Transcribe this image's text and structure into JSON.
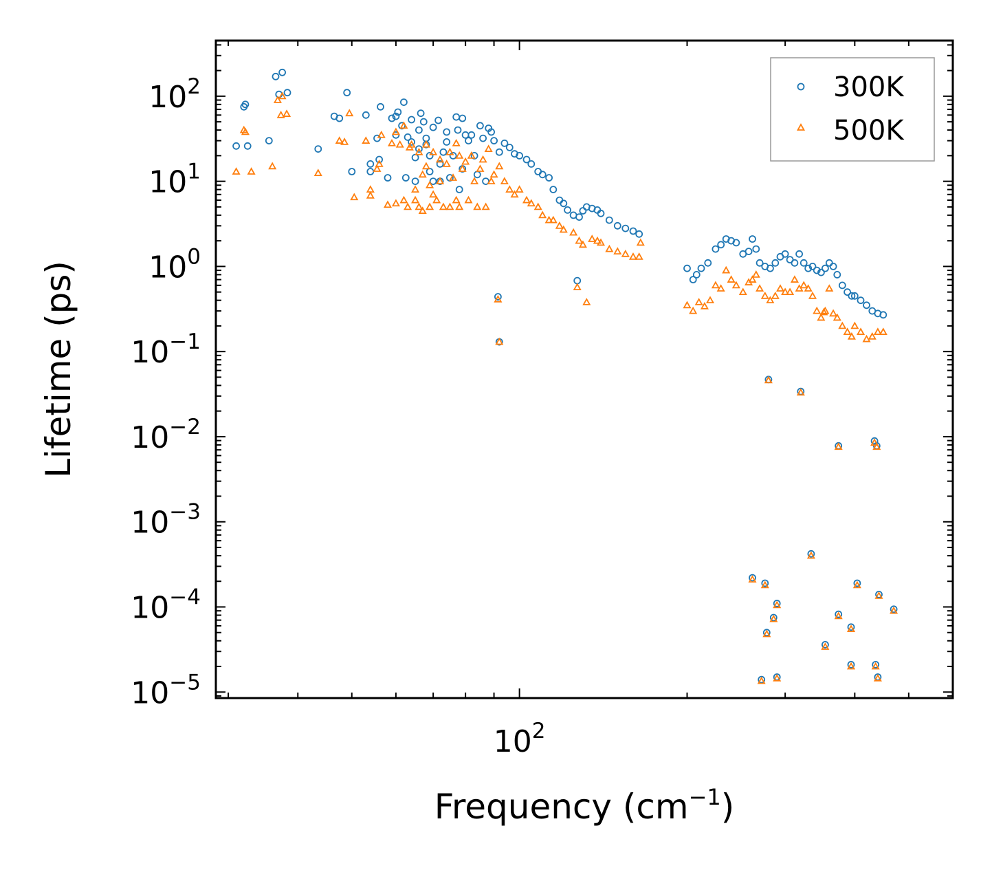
{
  "chart_data": {
    "type": "scatter",
    "title": "",
    "xlabel": "Frequency (cm",
    "xlabel_sup": "−1",
    "xlabel_close": ")",
    "ylabel": "Lifetime (ps)",
    "xscale": "log",
    "yscale": "log",
    "xlim": [
      28.5,
      600
    ],
    "ylim": [
      8.5e-06,
      450
    ],
    "x_major_ticks": [
      {
        "value": 100,
        "base": "10",
        "exp": "2"
      }
    ],
    "y_major_ticks": [
      {
        "value": 100,
        "base": "10",
        "exp": "2"
      },
      {
        "value": 10,
        "base": "10",
        "exp": "1"
      },
      {
        "value": 1,
        "base": "10",
        "exp": "0"
      },
      {
        "value": 0.1,
        "base": "10",
        "exp": "−1"
      },
      {
        "value": 0.01,
        "base": "10",
        "exp": "−2"
      },
      {
        "value": 0.001,
        "base": "10",
        "exp": "−3"
      },
      {
        "value": 0.0001,
        "base": "10",
        "exp": "−4"
      },
      {
        "value": 1e-05,
        "base": "10",
        "exp": "−5"
      }
    ],
    "legend_position": "top-right",
    "series": [
      {
        "name": "300K",
        "marker": "circle",
        "color": "#1f77b4",
        "points": [
          [
            31,
            26
          ],
          [
            32,
            75
          ],
          [
            32.2,
            80
          ],
          [
            32.5,
            26
          ],
          [
            35.5,
            30
          ],
          [
            36.5,
            170
          ],
          [
            37.5,
            190
          ],
          [
            38.3,
            110
          ],
          [
            37,
            105
          ],
          [
            43.5,
            24
          ],
          [
            46.5,
            58
          ],
          [
            47.5,
            55
          ],
          [
            49,
            110
          ],
          [
            50,
            13
          ],
          [
            53,
            60
          ],
          [
            54,
            13
          ],
          [
            54,
            16
          ],
          [
            55.5,
            32
          ],
          [
            56,
            18
          ],
          [
            56.3,
            75
          ],
          [
            58,
            11
          ],
          [
            59,
            55
          ],
          [
            60,
            58
          ],
          [
            60,
            35
          ],
          [
            60.5,
            65
          ],
          [
            61.5,
            45
          ],
          [
            62,
            85
          ],
          [
            62.5,
            11
          ],
          [
            63,
            33
          ],
          [
            64,
            29
          ],
          [
            64,
            53
          ],
          [
            65,
            19
          ],
          [
            65,
            10
          ],
          [
            66,
            40
          ],
          [
            66,
            24
          ],
          [
            66.5,
            63
          ],
          [
            67.3,
            50
          ],
          [
            68,
            32
          ],
          [
            68,
            27
          ],
          [
            69,
            20
          ],
          [
            69,
            13
          ],
          [
            70,
            43
          ],
          [
            70,
            10
          ],
          [
            71.5,
            52
          ],
          [
            72,
            16
          ],
          [
            72,
            10
          ],
          [
            73,
            22
          ],
          [
            74,
            29
          ],
          [
            74,
            38
          ],
          [
            75,
            11
          ],
          [
            76,
            20
          ],
          [
            77,
            57
          ],
          [
            77.5,
            40
          ],
          [
            78,
            8
          ],
          [
            79,
            55
          ],
          [
            79,
            14
          ],
          [
            80,
            35
          ],
          [
            81,
            30
          ],
          [
            82,
            35
          ],
          [
            83,
            20
          ],
          [
            84,
            12
          ],
          [
            85,
            45
          ],
          [
            86,
            32
          ],
          [
            87,
            10
          ],
          [
            88,
            42
          ],
          [
            89,
            38
          ],
          [
            90,
            30
          ],
          [
            92,
            22
          ],
          [
            94,
            28
          ],
          [
            96,
            25
          ],
          [
            98,
            21
          ],
          [
            100,
            20
          ],
          [
            103,
            18
          ],
          [
            105,
            16
          ],
          [
            108,
            13
          ],
          [
            110,
            12
          ],
          [
            113,
            11
          ],
          [
            115,
            8
          ],
          [
            118,
            6
          ],
          [
            120,
            5.5
          ],
          [
            122,
            4.6
          ],
          [
            125,
            4
          ],
          [
            128,
            3.8
          ],
          [
            130,
            4.5
          ],
          [
            132,
            5
          ],
          [
            135,
            4.8
          ],
          [
            138,
            4.6
          ],
          [
            140,
            4.2
          ],
          [
            145,
            3.5
          ],
          [
            150,
            3
          ],
          [
            155,
            2.8
          ],
          [
            160,
            2.6
          ],
          [
            164,
            2.4
          ],
          [
            91.5,
            0.44
          ],
          [
            92,
            0.13
          ],
          [
            127,
            0.68
          ],
          [
            200,
            0.95
          ],
          [
            205,
            0.7
          ],
          [
            208,
            0.8
          ],
          [
            212,
            0.95
          ],
          [
            218,
            1.1
          ],
          [
            225,
            1.6
          ],
          [
            230,
            1.8
          ],
          [
            235,
            2.1
          ],
          [
            240,
            2.0
          ],
          [
            245,
            1.9
          ],
          [
            252,
            1.4
          ],
          [
            258,
            1.5
          ],
          [
            262,
            2.1
          ],
          [
            266,
            1.6
          ],
          [
            270,
            1.1
          ],
          [
            276,
            1.0
          ],
          [
            282,
            0.95
          ],
          [
            288,
            1.1
          ],
          [
            294,
            1.3
          ],
          [
            300,
            1.4
          ],
          [
            306,
            1.2
          ],
          [
            312,
            1.1
          ],
          [
            318,
            1.4
          ],
          [
            324,
            1.1
          ],
          [
            330,
            0.95
          ],
          [
            336,
            1.0
          ],
          [
            342,
            0.9
          ],
          [
            348,
            0.85
          ],
          [
            354,
            0.95
          ],
          [
            360,
            1.1
          ],
          [
            366,
            1.0
          ],
          [
            372,
            0.8
          ],
          [
            380,
            0.6
          ],
          [
            388,
            0.5
          ],
          [
            395,
            0.45
          ],
          [
            400,
            0.45
          ],
          [
            410,
            0.4
          ],
          [
            420,
            0.35
          ],
          [
            430,
            0.3
          ],
          [
            440,
            0.28
          ],
          [
            450,
            0.27
          ],
          [
            280,
            0.047
          ],
          [
            320,
            0.034
          ],
          [
            374,
            0.0078
          ],
          [
            434,
            0.0089
          ],
          [
            438,
            0.0078
          ],
          [
            262,
            0.00022
          ],
          [
            276,
            0.00019
          ],
          [
            290,
            0.00011
          ],
          [
            286,
            7.5e-05
          ],
          [
            278,
            5e-05
          ],
          [
            272,
            1.4e-05
          ],
          [
            290,
            1.5e-05
          ],
          [
            334,
            0.00042
          ],
          [
            374,
            8.2e-05
          ],
          [
            354,
            3.6e-05
          ],
          [
            394,
            5.8e-05
          ],
          [
            404,
            0.00019
          ],
          [
            394,
            2.1e-05
          ],
          [
            442,
            0.00014
          ],
          [
            436,
            2.1e-05
          ],
          [
            440,
            1.5e-05
          ],
          [
            470,
            9.4e-05
          ]
        ]
      },
      {
        "name": "500K",
        "marker": "triangle",
        "color": "#ff7f0e",
        "points": [
          [
            31,
            13
          ],
          [
            32,
            40
          ],
          [
            32.2,
            38
          ],
          [
            33,
            13
          ],
          [
            36,
            15
          ],
          [
            36.8,
            90
          ],
          [
            37.5,
            100
          ],
          [
            38.2,
            62
          ],
          [
            37.3,
            60
          ],
          [
            43.5,
            12.5
          ],
          [
            47.5,
            30
          ],
          [
            48.5,
            29
          ],
          [
            49.5,
            63
          ],
          [
            50.5,
            6.5
          ],
          [
            53,
            30
          ],
          [
            54,
            6.8
          ],
          [
            54,
            8
          ],
          [
            55.5,
            14
          ],
          [
            56,
            16
          ],
          [
            56.5,
            35
          ],
          [
            58,
            5.3
          ],
          [
            59,
            28
          ],
          [
            60,
            38
          ],
          [
            60,
            5.5
          ],
          [
            61,
            27
          ],
          [
            62,
            6
          ],
          [
            62,
            45
          ],
          [
            63,
            5
          ],
          [
            63.5,
            25
          ],
          [
            64,
            27
          ],
          [
            65,
            8
          ],
          [
            65,
            6
          ],
          [
            66,
            5
          ],
          [
            66,
            22
          ],
          [
            67,
            12
          ],
          [
            67,
            4.5
          ],
          [
            68,
            15
          ],
          [
            68,
            27
          ],
          [
            69,
            9
          ],
          [
            69,
            5
          ],
          [
            70,
            22
          ],
          [
            70,
            7
          ],
          [
            71,
            6
          ],
          [
            72,
            18
          ],
          [
            72,
            10
          ],
          [
            73,
            5
          ],
          [
            74,
            16
          ],
          [
            75,
            22
          ],
          [
            75,
            5
          ],
          [
            76,
            11
          ],
          [
            77,
            28
          ],
          [
            77,
            6
          ],
          [
            78,
            20
          ],
          [
            78,
            5
          ],
          [
            79,
            14
          ],
          [
            80,
            17
          ],
          [
            81,
            6
          ],
          [
            82,
            20
          ],
          [
            83,
            10
          ],
          [
            84,
            5
          ],
          [
            85,
            14
          ],
          [
            86,
            18
          ],
          [
            87,
            5
          ],
          [
            88,
            24
          ],
          [
            89,
            10
          ],
          [
            90,
            12
          ],
          [
            92,
            15
          ],
          [
            94,
            10
          ],
          [
            96,
            8
          ],
          [
            98,
            7
          ],
          [
            100,
            8
          ],
          [
            103,
            6
          ],
          [
            105,
            5.5
          ],
          [
            108,
            5
          ],
          [
            110,
            4
          ],
          [
            113,
            3.5
          ],
          [
            115,
            3.5
          ],
          [
            118,
            3
          ],
          [
            120,
            2.7
          ],
          [
            125,
            2.5
          ],
          [
            128,
            2
          ],
          [
            130,
            1.8
          ],
          [
            135,
            2.1
          ],
          [
            138,
            2
          ],
          [
            140,
            1.9
          ],
          [
            145,
            1.6
          ],
          [
            150,
            1.5
          ],
          [
            155,
            1.4
          ],
          [
            160,
            1.3
          ],
          [
            164,
            1.3
          ],
          [
            165,
            1.9
          ],
          [
            91.5,
            0.41
          ],
          [
            92,
            0.13
          ],
          [
            127,
            0.57
          ],
          [
            132,
            0.38
          ],
          [
            200,
            0.35
          ],
          [
            205,
            0.3
          ],
          [
            210,
            0.38
          ],
          [
            215,
            0.34
          ],
          [
            220,
            0.4
          ],
          [
            225,
            0.6
          ],
          [
            230,
            0.55
          ],
          [
            235,
            0.9
          ],
          [
            240,
            0.7
          ],
          [
            245,
            0.6
          ],
          [
            252,
            0.5
          ],
          [
            258,
            0.65
          ],
          [
            262,
            0.7
          ],
          [
            266,
            0.8
          ],
          [
            270,
            0.55
          ],
          [
            276,
            0.45
          ],
          [
            282,
            0.4
          ],
          [
            288,
            0.45
          ],
          [
            294,
            0.55
          ],
          [
            300,
            0.5
          ],
          [
            306,
            0.5
          ],
          [
            312,
            0.7
          ],
          [
            318,
            0.55
          ],
          [
            324,
            0.6
          ],
          [
            330,
            0.55
          ],
          [
            336,
            0.45
          ],
          [
            342,
            0.3
          ],
          [
            348,
            0.25
          ],
          [
            354,
            0.3
          ],
          [
            360,
            0.55
          ],
          [
            366,
            0.28
          ],
          [
            372,
            0.25
          ],
          [
            380,
            0.2
          ],
          [
            388,
            0.17
          ],
          [
            395,
            0.15
          ],
          [
            400,
            0.2
          ],
          [
            410,
            0.17
          ],
          [
            420,
            0.14
          ],
          [
            430,
            0.15
          ],
          [
            440,
            0.17
          ],
          [
            450,
            0.17
          ],
          [
            352,
            0.29
          ],
          [
            280,
            0.046
          ],
          [
            320,
            0.033
          ],
          [
            374,
            0.0076
          ],
          [
            434,
            0.0085
          ],
          [
            438,
            0.0076
          ],
          [
            262,
            0.00021
          ],
          [
            276,
            0.00018
          ],
          [
            290,
            0.000105
          ],
          [
            286,
            7.2e-05
          ],
          [
            278,
            4.8e-05
          ],
          [
            272,
            1.35e-05
          ],
          [
            290,
            1.45e-05
          ],
          [
            334,
            0.0004
          ],
          [
            374,
            7.8e-05
          ],
          [
            354,
            3.4e-05
          ],
          [
            394,
            5.5e-05
          ],
          [
            404,
            0.00018
          ],
          [
            394,
            2e-05
          ],
          [
            442,
            0.000135
          ],
          [
            436,
            2e-05
          ],
          [
            440,
            1.45e-05
          ],
          [
            470,
            9e-05
          ]
        ]
      }
    ]
  }
}
